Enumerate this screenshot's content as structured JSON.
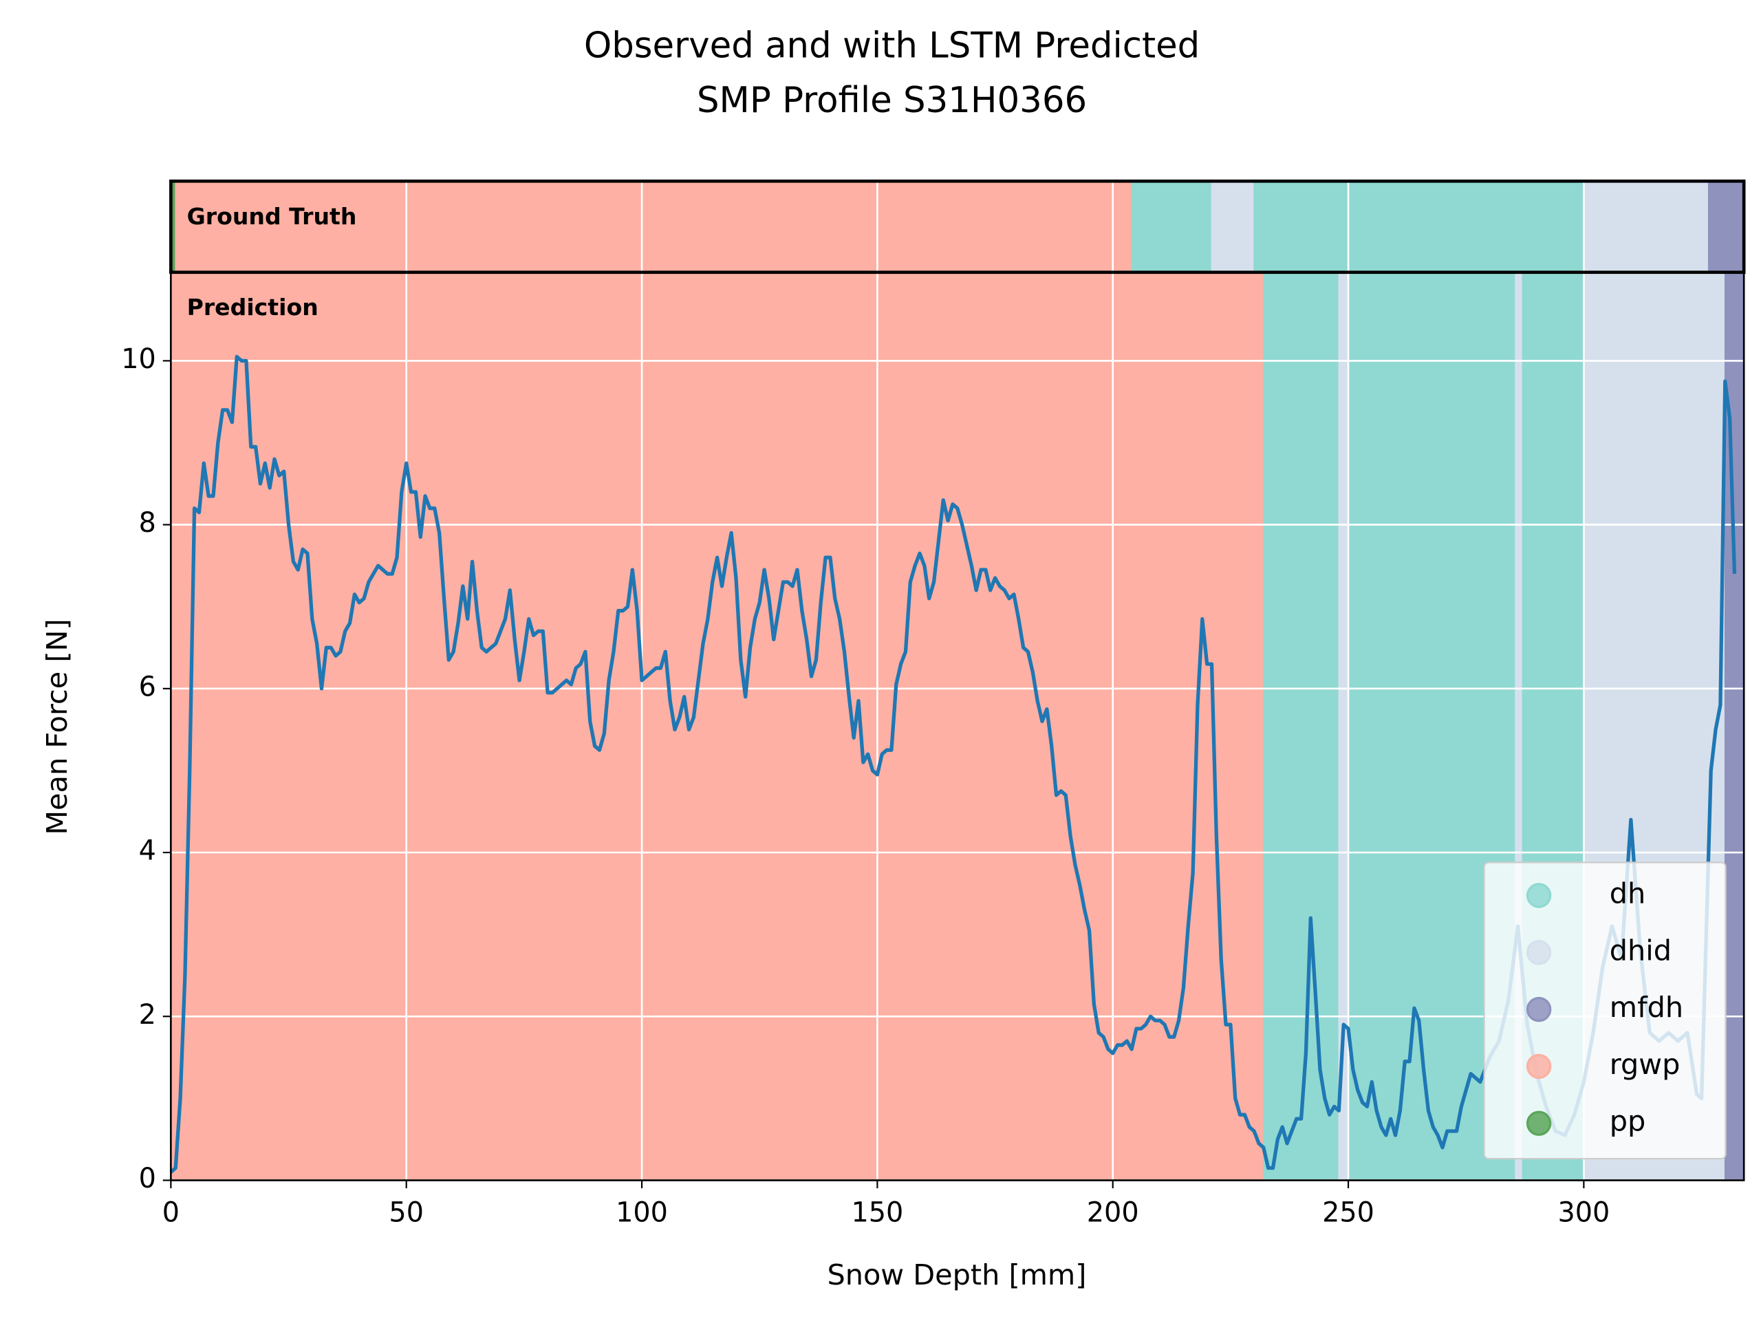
{
  "chart_data": {
    "type": "line",
    "title": "Observed and with LSTM Predicted",
    "subtitle": "SMP Profile S31H0366",
    "xlabel": "Snow Depth [mm]",
    "ylabel": "Mean Force [N]",
    "xlim": [
      0,
      334
    ],
    "ylim": [
      0,
      11.08
    ],
    "xticks": [
      0,
      50,
      100,
      150,
      200,
      250,
      300
    ],
    "yticks": [
      0,
      2,
      4,
      6,
      8,
      10
    ],
    "grid": true,
    "legend_position": "lower right",
    "color": "#1f77b4",
    "classes": [
      {
        "name": "dh",
        "color": "#8fd9d2"
      },
      {
        "name": "dhid",
        "color": "#d6e0ec"
      },
      {
        "name": "mfdh",
        "color": "#8f92bd"
      },
      {
        "name": "rgwp",
        "color": "#fdb0a3"
      },
      {
        "name": "pp",
        "color": "#5aa65a"
      }
    ],
    "ground_truth": {
      "label": "Ground Truth",
      "segments": [
        {
          "class": 4,
          "start": 0,
          "end": 1
        },
        {
          "class": 3,
          "start": 1,
          "end": 204
        },
        {
          "class": 0,
          "start": 204,
          "end": 221
        },
        {
          "class": 1,
          "start": 221,
          "end": 230
        },
        {
          "class": 0,
          "start": 230,
          "end": 300
        },
        {
          "class": 1,
          "start": 300,
          "end": 326.5
        },
        {
          "class": 2,
          "start": 326.5,
          "end": 334
        }
      ]
    },
    "prediction": {
      "label": "Prediction",
      "segments": [
        {
          "class": 3,
          "start": 0,
          "end": 232
        },
        {
          "class": 0,
          "start": 232,
          "end": 248
        },
        {
          "class": 1,
          "start": 248,
          "end": 250
        },
        {
          "class": 0,
          "start": 250,
          "end": 285.5
        },
        {
          "class": 1,
          "start": 285.5,
          "end": 287
        },
        {
          "class": 0,
          "start": 287,
          "end": 300
        },
        {
          "class": 1,
          "start": 300,
          "end": 330
        },
        {
          "class": 2,
          "start": 330,
          "end": 334
        }
      ]
    },
    "x": [
      0,
      1,
      2,
      3,
      4,
      5,
      6,
      7,
      8,
      9,
      10,
      11,
      12,
      13,
      14,
      15,
      16,
      17,
      18,
      19,
      20,
      21,
      22,
      23,
      24,
      25,
      26,
      27,
      28,
      29,
      30,
      31,
      32,
      33,
      34,
      35,
      36,
      37,
      38,
      39,
      40,
      41,
      42,
      43,
      44,
      45,
      46,
      47,
      48,
      49,
      50,
      51,
      52,
      53,
      54,
      55,
      56,
      57,
      58,
      59,
      60,
      61,
      62,
      63,
      64,
      65,
      66,
      67,
      68,
      69,
      70,
      71,
      72,
      73,
      74,
      75,
      76,
      77,
      78,
      79,
      80,
      81,
      82,
      83,
      84,
      85,
      86,
      87,
      88,
      89,
      90,
      91,
      92,
      93,
      94,
      95,
      96,
      97,
      98,
      99,
      100,
      101,
      102,
      103,
      104,
      105,
      106,
      107,
      108,
      109,
      110,
      111,
      112,
      113,
      114,
      115,
      116,
      117,
      118,
      119,
      120,
      121,
      122,
      123,
      124,
      125,
      126,
      127,
      128,
      129,
      130,
      131,
      132,
      133,
      134,
      135,
      136,
      137,
      138,
      139,
      140,
      141,
      142,
      143,
      144,
      145,
      146,
      147,
      148,
      149,
      150,
      151,
      152,
      153,
      154,
      155,
      156,
      157,
      158,
      159,
      160,
      161,
      162,
      163,
      164,
      165,
      166,
      167,
      168,
      169,
      170,
      171,
      172,
      173,
      174,
      175,
      176,
      177,
      178,
      179,
      180,
      181,
      182,
      183,
      184,
      185,
      186,
      187,
      188,
      189,
      190,
      191,
      192,
      193,
      194,
      195,
      196,
      197,
      198,
      199,
      200,
      201,
      202,
      203,
      204,
      205,
      206,
      207,
      208,
      209,
      210,
      211,
      212,
      213,
      214,
      215,
      216,
      217,
      218,
      219,
      220,
      221,
      222,
      223,
      224,
      225,
      226,
      227,
      228,
      229,
      230,
      231,
      232,
      233,
      234,
      235,
      236,
      237,
      238,
      239,
      240,
      241,
      242,
      243,
      244,
      245,
      246,
      247,
      248,
      249,
      250,
      251,
      252,
      253,
      254,
      255,
      256,
      257,
      258,
      259,
      260,
      261,
      262,
      263,
      264,
      265,
      266,
      267,
      268,
      269,
      270,
      271,
      272,
      273,
      274,
      276,
      278,
      280,
      282,
      284,
      286,
      288,
      290,
      292,
      294,
      296,
      298,
      300,
      302,
      304,
      306,
      308,
      310,
      312,
      314,
      316,
      318,
      320,
      322,
      324,
      325,
      326,
      327,
      328,
      329,
      330,
      331,
      332
    ],
    "values": [
      0.1,
      0.15,
      1,
      2.5,
      5,
      8.2,
      8.15,
      8.75,
      8.35,
      8.35,
      9,
      9.4,
      9.4,
      9.25,
      10.05,
      10,
      10,
      8.95,
      8.95,
      8.5,
      8.75,
      8.45,
      8.8,
      8.6,
      8.65,
      8,
      7.55,
      7.45,
      7.7,
      7.65,
      6.85,
      6.55,
      6,
      6.5,
      6.5,
      6.4,
      6.45,
      6.7,
      6.8,
      7.15,
      7.05,
      7.1,
      7.3,
      7.4,
      7.5,
      7.45,
      7.4,
      7.4,
      7.6,
      8.4,
      8.75,
      8.4,
      8.4,
      7.85,
      8.35,
      8.2,
      8.2,
      7.9,
      7.1,
      6.35,
      6.45,
      6.8,
      7.25,
      6.85,
      7.55,
      6.95,
      6.5,
      6.45,
      6.5,
      6.55,
      6.7,
      6.85,
      7.2,
      6.6,
      6.1,
      6.45,
      6.85,
      6.65,
      6.7,
      6.7,
      5.95,
      5.95,
      6,
      6.05,
      6.1,
      6.05,
      6.25,
      6.3,
      6.45,
      5.6,
      5.3,
      5.25,
      5.45,
      6.1,
      6.45,
      6.95,
      6.95,
      7,
      7.45,
      6.95,
      6.1,
      6.15,
      6.2,
      6.25,
      6.25,
      6.45,
      5.85,
      5.5,
      5.65,
      5.9,
      5.5,
      5.65,
      6.1,
      6.55,
      6.85,
      7.3,
      7.6,
      7.25,
      7.6,
      7.9,
      7.35,
      6.35,
      5.9,
      6.5,
      6.85,
      7.05,
      7.45,
      7.1,
      6.6,
      6.95,
      7.3,
      7.3,
      7.25,
      7.45,
      6.95,
      6.6,
      6.15,
      6.35,
      7.05,
      7.6,
      7.6,
      7.1,
      6.85,
      6.45,
      5.9,
      5.4,
      5.85,
      5.1,
      5.2,
      5,
      4.95,
      5.2,
      5.25,
      5.25,
      6.05,
      6.3,
      6.45,
      7.3,
      7.5,
      7.65,
      7.5,
      7.1,
      7.3,
      7.8,
      8.3,
      8.05,
      8.25,
      8.2,
      8,
      7.75,
      7.5,
      7.2,
      7.45,
      7.45,
      7.2,
      7.35,
      7.25,
      7.2,
      7.1,
      7.15,
      6.85,
      6.5,
      6.45,
      6.2,
      5.85,
      5.6,
      5.75,
      5.3,
      4.7,
      4.75,
      4.7,
      4.2,
      3.85,
      3.6,
      3.3,
      3.05,
      2.15,
      1.8,
      1.75,
      1.6,
      1.55,
      1.65,
      1.65,
      1.7,
      1.6,
      1.85,
      1.85,
      1.9,
      2,
      1.95,
      1.95,
      1.9,
      1.75,
      1.75,
      1.95,
      2.35,
      3.1,
      3.75,
      5.8,
      6.85,
      6.3,
      6.3,
      4.2,
      2.7,
      1.9,
      1.9,
      1,
      0.8,
      0.8,
      0.65,
      0.6,
      0.45,
      0.4,
      0.15,
      0.15,
      0.5,
      0.65,
      0.45,
      0.6,
      0.75,
      0.75,
      1.55,
      3.2,
      2.3,
      1.35,
      1,
      0.8,
      0.9,
      0.85,
      1.9,
      1.85,
      1.35,
      1.1,
      0.95,
      0.9,
      1.2,
      0.85,
      0.65,
      0.55,
      0.75,
      0.55,
      0.85,
      1.45,
      1.45,
      2.1,
      1.95,
      1.35,
      0.85,
      0.65,
      0.55,
      0.4,
      0.6,
      0.6,
      0.6,
      0.9,
      1.3,
      1.2,
      1.5,
      1.7,
      2.2,
      3.1,
      1.9,
      1.3,
      0.9,
      0.6,
      0.55,
      0.8,
      1.2,
      1.8,
      2.6,
      3.1,
      2.7,
      4.4,
      2.8,
      1.8,
      1.7,
      1.8,
      1.7,
      1.8,
      1.05,
      1,
      3,
      5,
      5.5,
      5.8,
      9.75,
      9.3,
      7.4
    ]
  }
}
